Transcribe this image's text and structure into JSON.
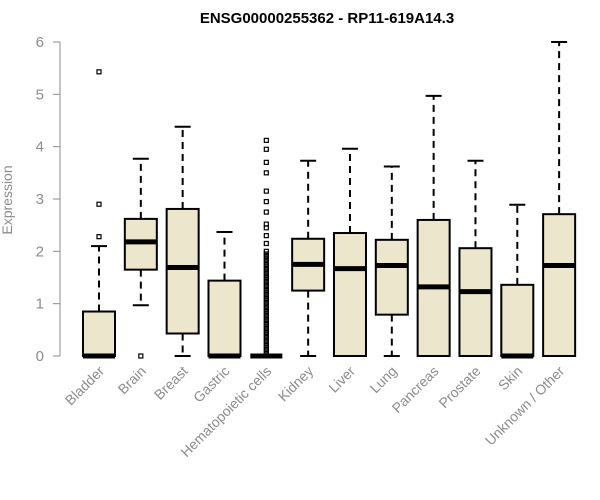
{
  "chart_data": {
    "type": "box",
    "title": "ENSG00000255362 - RP11-619A14.3",
    "ylabel": "Expression",
    "xlabel": "",
    "ylim": [
      0,
      6
    ],
    "yticks": [
      0,
      1,
      2,
      3,
      4,
      5,
      6
    ],
    "box_color": "#ece6cc",
    "categories": [
      "Bladder",
      "Brain",
      "Breast",
      "Gastric",
      "Hematopoietic cells",
      "Kidney",
      "Liver",
      "Lung",
      "Pancreas",
      "Prostate",
      "Skin",
      "Unknown / Other"
    ],
    "boxes": [
      {
        "whisker_low": 0,
        "q1": 0,
        "median": 0,
        "q3": 0.85,
        "whisker_high": 2.1,
        "outliers": [
          2.28,
          2.9,
          5.43
        ]
      },
      {
        "whisker_low": 0.97,
        "q1": 1.65,
        "median": 2.18,
        "q3": 2.62,
        "whisker_high": 3.77,
        "outliers": [
          0
        ]
      },
      {
        "whisker_low": 0,
        "q1": 0.43,
        "median": 1.69,
        "q3": 2.81,
        "whisker_high": 4.38,
        "outliers": []
      },
      {
        "whisker_low": 0,
        "q1": 0,
        "median": 0,
        "q3": 1.44,
        "whisker_high": 2.37,
        "outliers": []
      },
      {
        "whisker_low": 0,
        "q1": 0,
        "median": 0,
        "q3": 0,
        "whisker_high": 0,
        "outliers": [
          0.05,
          0.1,
          0.15,
          0.2,
          0.25,
          0.3,
          0.35,
          0.4,
          0.45,
          0.5,
          0.55,
          0.6,
          0.65,
          0.7,
          0.75,
          0.8,
          0.85,
          0.9,
          0.95,
          1.0,
          1.05,
          1.1,
          1.15,
          1.2,
          1.25,
          1.3,
          1.35,
          1.4,
          1.45,
          1.5,
          1.55,
          1.6,
          1.65,
          1.7,
          1.75,
          1.8,
          1.85,
          1.9,
          1.95,
          2.0,
          2.15,
          2.3,
          2.45,
          2.52,
          2.75,
          2.95,
          3.15,
          3.5,
          3.7,
          3.95,
          4.12
        ]
      },
      {
        "whisker_low": 0,
        "q1": 1.25,
        "median": 1.75,
        "q3": 2.24,
        "whisker_high": 3.73,
        "outliers": []
      },
      {
        "whisker_low": 0,
        "q1": 0,
        "median": 1.67,
        "q3": 2.35,
        "whisker_high": 3.96,
        "outliers": []
      },
      {
        "whisker_low": 0,
        "q1": 0.79,
        "median": 1.73,
        "q3": 2.22,
        "whisker_high": 3.62,
        "outliers": []
      },
      {
        "whisker_low": 0,
        "q1": 0,
        "median": 1.32,
        "q3": 2.6,
        "whisker_high": 4.97,
        "outliers": []
      },
      {
        "whisker_low": 0,
        "q1": 0,
        "median": 1.23,
        "q3": 2.06,
        "whisker_high": 3.73,
        "outliers": []
      },
      {
        "whisker_low": 0,
        "q1": 0,
        "median": 0,
        "q3": 1.36,
        "whisker_high": 2.89,
        "outliers": []
      },
      {
        "whisker_low": 0,
        "q1": 0,
        "median": 1.73,
        "q3": 2.71,
        "whisker_high": 6.0,
        "outliers": []
      }
    ],
    "grid": false,
    "legend": "none"
  }
}
